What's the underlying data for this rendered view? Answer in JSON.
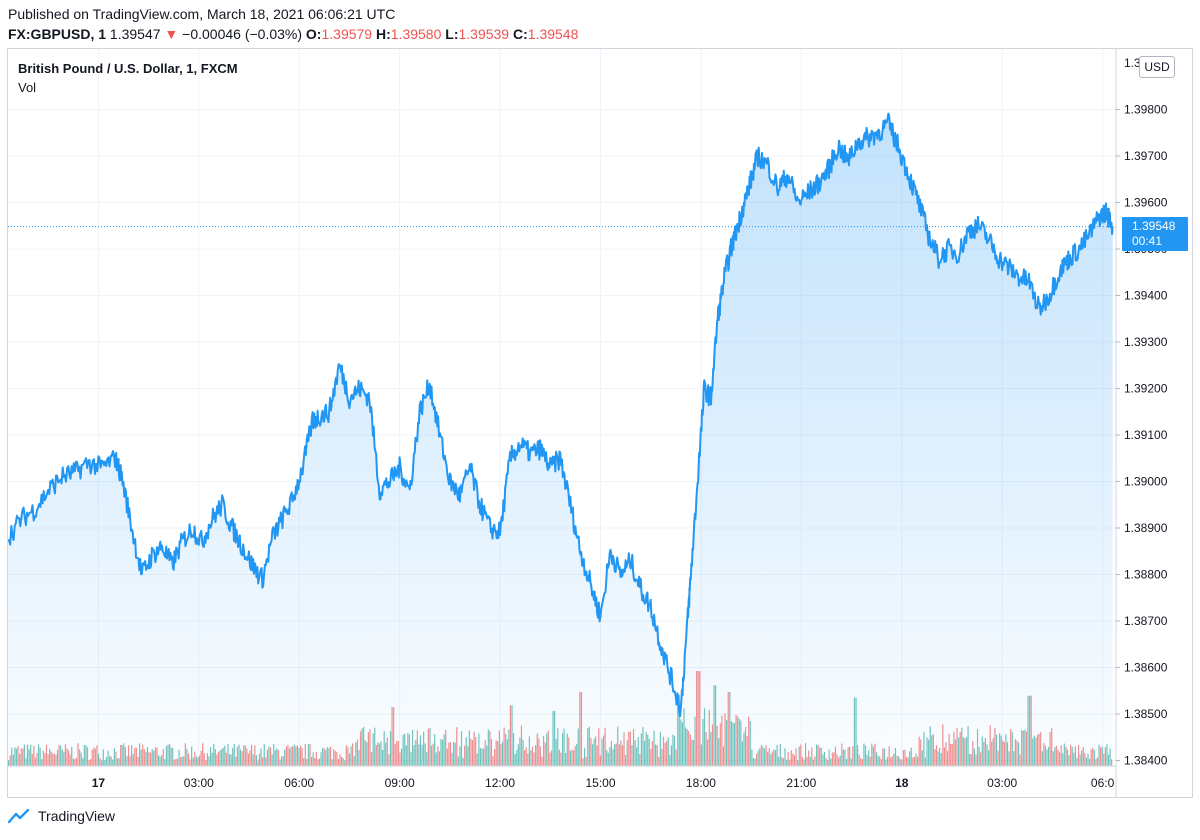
{
  "header": {
    "published": "Published on TradingView.com, March 18, 2021 06:06:21 UTC",
    "symbol": "FX:GBPUSD, 1",
    "last": "1.39547",
    "arrow": "▼",
    "change": "−0.00046 (−0.03%)",
    "o_label": "O:",
    "o_value": "1.39579",
    "h_label": "H:",
    "h_value": "1.39580",
    "l_label": "L:",
    "l_value": "1.39539",
    "c_label": "C:",
    "c_value": "1.39548"
  },
  "legend": {
    "title": "British Pound / U.S. Dollar, 1, FXCM",
    "vol": "Vol"
  },
  "price_axis": {
    "currency": "USD"
  },
  "price_tag": {
    "price": "1.39548",
    "countdown": "00:41"
  },
  "footer": {
    "brand": "TradingView"
  },
  "colors": {
    "line": "#2196f3",
    "vol_up": "#26a69a",
    "vol_down": "#ef5350",
    "grid": "#f0f3fa"
  },
  "chart_data": {
    "type": "area",
    "title": "British Pound / U.S. Dollar, 1, FXCM",
    "xlabel": "",
    "ylabel": "",
    "ylim": [
      1.3838,
      1.399
    ],
    "y_ticks": [
      1.384,
      1.385,
      1.386,
      1.387,
      1.388,
      1.389,
      1.39,
      1.391,
      1.392,
      1.393,
      1.394,
      1.395,
      1.396,
      1.397,
      1.398
    ],
    "y_tick_labels": [
      "1.38400",
      "1.38500",
      "1.38600",
      "1.38700",
      "1.38800",
      "1.38900",
      "1.39000",
      "1.39100",
      "1.39200",
      "1.39300",
      "1.39400",
      "1.39500",
      "1.39600",
      "1.39700",
      "1.39800"
    ],
    "top_tick_label": "1.39900",
    "x_ticks": [
      {
        "label": "17",
        "t": 1.5,
        "bold": true
      },
      {
        "label": "03:00",
        "t": 4.5
      },
      {
        "label": "06:00",
        "t": 7.5
      },
      {
        "label": "09:00",
        "t": 10.5
      },
      {
        "label": "12:00",
        "t": 13.5
      },
      {
        "label": "15:00",
        "t": 16.5
      },
      {
        "label": "18:00",
        "t": 19.5
      },
      {
        "label": "21:00",
        "t": 22.5
      },
      {
        "label": "18",
        "t": 25.5,
        "bold": true
      },
      {
        "label": "03:00",
        "t": 28.5
      },
      {
        "label": "06:0",
        "t": 31.5
      }
    ],
    "x_range": [
      -1.2,
      31.9
    ],
    "last_price": 1.39548,
    "series": [
      {
        "name": "GBPUSD close",
        "t": [
          -1.2,
          -0.8,
          -0.4,
          0,
          0.4,
          0.8,
          1.2,
          1.6,
          2.0,
          2.2,
          2.5,
          2.8,
          3.1,
          3.4,
          3.7,
          4.0,
          4.3,
          4.6,
          4.9,
          5.2,
          5.5,
          5.8,
          6.1,
          6.4,
          6.7,
          7.0,
          7.3,
          7.6,
          7.9,
          8.1,
          8.4,
          8.7,
          9.0,
          9.3,
          9.6,
          9.9,
          10.2,
          10.5,
          10.8,
          11.1,
          11.4,
          11.7,
          12.0,
          12.3,
          12.6,
          12.9,
          13.2,
          13.5,
          13.8,
          14.1,
          14.4,
          14.7,
          15.0,
          15.3,
          15.6,
          15.9,
          16.2,
          16.5,
          16.8,
          17.1,
          17.4,
          17.7,
          18.0,
          18.3,
          18.6,
          18.9,
          19.1,
          19.2,
          19.4,
          19.6,
          19.8,
          20.0,
          20.2,
          20.4,
          20.6,
          20.8,
          21.0,
          21.2,
          21.5,
          21.8,
          22.1,
          22.4,
          22.7,
          23.0,
          23.3,
          23.6,
          23.9,
          24.2,
          24.5,
          24.8,
          25.1,
          25.4,
          25.7,
          26.0,
          26.3,
          26.6,
          26.9,
          27.2,
          27.5,
          27.8,
          28.1,
          28.4,
          28.7,
          29.0,
          29.3,
          29.6,
          29.9,
          30.2,
          30.5,
          30.8,
          31.1,
          31.4,
          31.6,
          31.8
        ],
        "values": [
          1.3888,
          1.3892,
          1.3894,
          1.3898,
          1.3901,
          1.3902,
          1.3904,
          1.3903,
          1.3905,
          1.3901,
          1.389,
          1.388,
          1.3884,
          1.3886,
          1.3882,
          1.3887,
          1.389,
          1.3887,
          1.3892,
          1.3895,
          1.389,
          1.3886,
          1.3882,
          1.3879,
          1.3888,
          1.3892,
          1.3896,
          1.3903,
          1.3913,
          1.3914,
          1.3915,
          1.3925,
          1.3918,
          1.392,
          1.3918,
          1.3898,
          1.39,
          1.3903,
          1.3898,
          1.3915,
          1.3921,
          1.391,
          1.39,
          1.3897,
          1.3903,
          1.3895,
          1.389,
          1.3889,
          1.3905,
          1.3908,
          1.3906,
          1.3907,
          1.3903,
          1.3905,
          1.3895,
          1.3885,
          1.3878,
          1.3871,
          1.3885,
          1.388,
          1.3883,
          1.3877,
          1.3873,
          1.3865,
          1.3858,
          1.3851,
          1.387,
          1.388,
          1.39,
          1.392,
          1.3918,
          1.3935,
          1.3944,
          1.395,
          1.3955,
          1.396,
          1.3965,
          1.397,
          1.3968,
          1.3963,
          1.3966,
          1.396,
          1.3962,
          1.3964,
          1.3967,
          1.3972,
          1.3969,
          1.3973,
          1.3974,
          1.3975,
          1.3977,
          1.3972,
          1.3966,
          1.396,
          1.3953,
          1.3948,
          1.395,
          1.3949,
          1.3954,
          1.3955,
          1.3952,
          1.3948,
          1.3946,
          1.3944,
          1.3943,
          1.3937,
          1.394,
          1.3945,
          1.3948,
          1.395,
          1.3953,
          1.3957,
          1.3958,
          1.3955
        ]
      }
    ],
    "volume": {
      "note": "per-minute tick volume, relative scale 0-1",
      "t_range": [
        -1.2,
        31.8
      ],
      "spikes": [
        {
          "t": 19.4,
          "v": 1.0
        },
        {
          "t": 19.9,
          "v": 0.85
        },
        {
          "t": 20.3,
          "v": 0.78
        },
        {
          "t": 15.9,
          "v": 0.78
        },
        {
          "t": 24.1,
          "v": 0.72
        },
        {
          "t": 29.3,
          "v": 0.74
        },
        {
          "t": 10.3,
          "v": 0.62
        },
        {
          "t": 13.8,
          "v": 0.64
        },
        {
          "t": 15.1,
          "v": 0.58
        },
        {
          "t": 18.8,
          "v": 0.75
        }
      ]
    }
  }
}
